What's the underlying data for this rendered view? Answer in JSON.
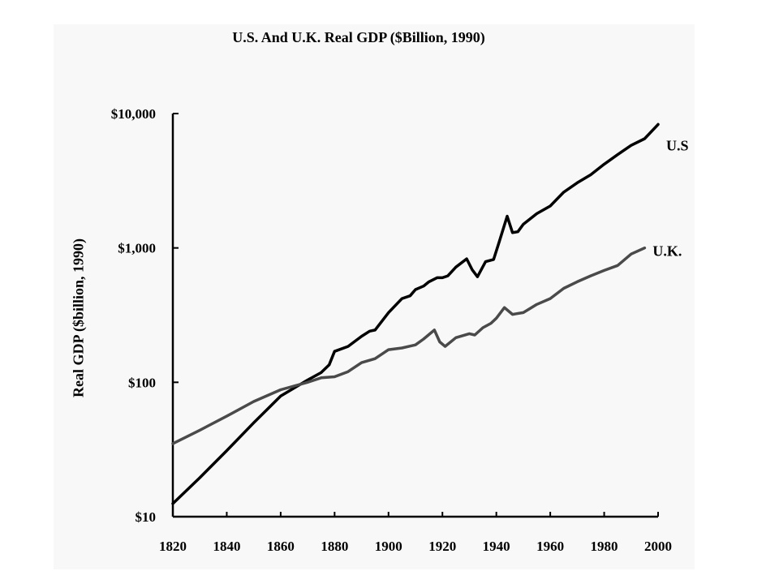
{
  "chart_data": {
    "type": "line",
    "title": "U.S. And U.K. Real GDP  ($Billion, 1990)",
    "xlabel": "",
    "ylabel": "Real GDP  ($billion, 1990)",
    "y_scale": "log",
    "xlim": [
      1820,
      2000
    ],
    "ylim": [
      10,
      10000
    ],
    "x_ticks": [
      1820,
      1840,
      1860,
      1880,
      1900,
      1920,
      1940,
      1960,
      1980,
      2000
    ],
    "y_ticks": [
      {
        "value": 10,
        "label": "$10"
      },
      {
        "value": 100,
        "label": "$100"
      },
      {
        "value": 1000,
        "label": "$1,000"
      },
      {
        "value": 10000,
        "label": "$10,000"
      }
    ],
    "grid": false,
    "legend": "none",
    "series": [
      {
        "name": "U.S",
        "color": "#000000",
        "points": [
          [
            1820,
            12.5
          ],
          [
            1830,
            19.5
          ],
          [
            1840,
            31
          ],
          [
            1850,
            50
          ],
          [
            1860,
            79
          ],
          [
            1870,
            104
          ],
          [
            1875,
            118
          ],
          [
            1878,
            135
          ],
          [
            1880,
            170
          ],
          [
            1885,
            185
          ],
          [
            1890,
            220
          ],
          [
            1893,
            240
          ],
          [
            1895,
            245
          ],
          [
            1900,
            330
          ],
          [
            1905,
            420
          ],
          [
            1908,
            440
          ],
          [
            1910,
            490
          ],
          [
            1913,
            520
          ],
          [
            1915,
            560
          ],
          [
            1918,
            600
          ],
          [
            1920,
            600
          ],
          [
            1922,
            620
          ],
          [
            1925,
            720
          ],
          [
            1929,
            830
          ],
          [
            1931,
            690
          ],
          [
            1933,
            610
          ],
          [
            1936,
            790
          ],
          [
            1939,
            820
          ],
          [
            1941,
            1100
          ],
          [
            1944,
            1720
          ],
          [
            1946,
            1300
          ],
          [
            1948,
            1320
          ],
          [
            1950,
            1500
          ],
          [
            1955,
            1800
          ],
          [
            1960,
            2050
          ],
          [
            1965,
            2600
          ],
          [
            1970,
            3050
          ],
          [
            1975,
            3500
          ],
          [
            1980,
            4200
          ],
          [
            1985,
            4950
          ],
          [
            1990,
            5800
          ],
          [
            1995,
            6500
          ],
          [
            2000,
            8300
          ]
        ]
      },
      {
        "name": "U.K.",
        "color": "#4a4a4a",
        "points": [
          [
            1820,
            35
          ],
          [
            1830,
            44
          ],
          [
            1840,
            56
          ],
          [
            1850,
            72
          ],
          [
            1860,
            88
          ],
          [
            1870,
            100
          ],
          [
            1875,
            108
          ],
          [
            1880,
            110
          ],
          [
            1885,
            120
          ],
          [
            1890,
            140
          ],
          [
            1895,
            150
          ],
          [
            1900,
            175
          ],
          [
            1905,
            180
          ],
          [
            1910,
            190
          ],
          [
            1913,
            210
          ],
          [
            1917,
            245
          ],
          [
            1919,
            200
          ],
          [
            1921,
            185
          ],
          [
            1925,
            215
          ],
          [
            1930,
            230
          ],
          [
            1932,
            225
          ],
          [
            1935,
            255
          ],
          [
            1938,
            275
          ],
          [
            1940,
            300
          ],
          [
            1943,
            360
          ],
          [
            1946,
            320
          ],
          [
            1950,
            330
          ],
          [
            1955,
            380
          ],
          [
            1960,
            420
          ],
          [
            1965,
            500
          ],
          [
            1970,
            560
          ],
          [
            1975,
            620
          ],
          [
            1980,
            680
          ],
          [
            1985,
            740
          ],
          [
            1990,
            900
          ],
          [
            1995,
            1000
          ]
        ]
      }
    ]
  }
}
